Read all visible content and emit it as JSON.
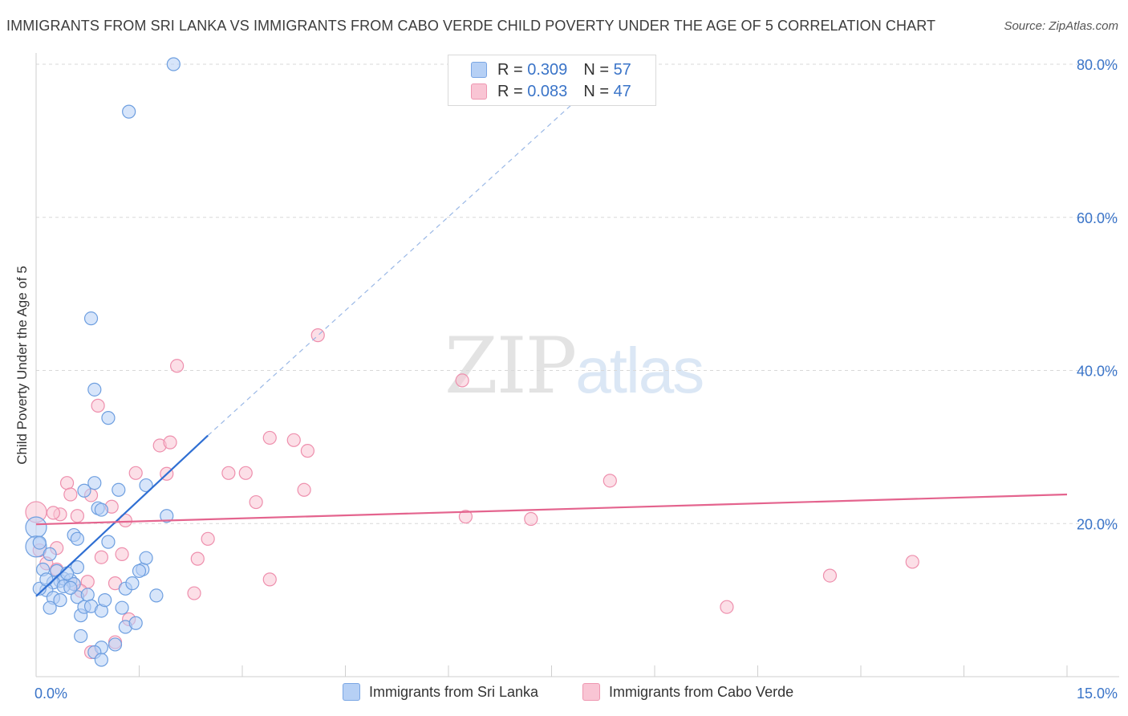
{
  "title": "IMMIGRANTS FROM SRI LANKA VS IMMIGRANTS FROM CABO VERDE CHILD POVERTY UNDER THE AGE OF 5 CORRELATION CHART",
  "source": "Source: ZipAtlas.com",
  "watermark": {
    "zip": "ZIP",
    "atlas": "atlas"
  },
  "stats_box": [
    {
      "r_label": "R =",
      "r_value": "0.309",
      "n_label": "N =",
      "n_value": "57",
      "color": "#b6d0f5"
    },
    {
      "r_label": "R =",
      "r_value": "0.083",
      "n_label": "N =",
      "n_value": "47",
      "color": "#f9c5d4"
    }
  ],
  "chart_data": {
    "type": "scatter",
    "title": "IMMIGRANTS FROM SRI LANKA VS IMMIGRANTS FROM CABO VERDE CHILD POVERTY UNDER THE AGE OF 5 CORRELATION CHART",
    "xlabel": "",
    "ylabel": "Child Poverty Under the Age of 5",
    "xlim": [
      0,
      15
    ],
    "ylim": [
      0,
      80
    ],
    "x_tick_labels": [
      "0.0%",
      "15.0%"
    ],
    "y_ticks": [
      20,
      40,
      60,
      80
    ],
    "y_tick_labels": [
      "20.0%",
      "40.0%",
      "60.0%",
      "80.0%"
    ],
    "grid": true,
    "legend_position": "bottom",
    "series": [
      {
        "name": "Immigrants from Sri Lanka",
        "color": "#6e9fe0",
        "fill": "#b6d0f5",
        "trend": {
          "x0": 0.0,
          "y0": 10.5,
          "x1": 2.5,
          "y1": 31.5,
          "dashed_to_x": 8.5,
          "dashed_to_y": 80.5,
          "color": "#2f6fd3"
        },
        "points": [
          [
            2.0,
            80.0
          ],
          [
            1.35,
            73.8
          ],
          [
            0.8,
            46.8
          ],
          [
            0.85,
            37.5
          ],
          [
            1.05,
            33.8
          ],
          [
            0.0,
            19.5
          ],
          [
            0.0,
            17.0
          ],
          [
            0.05,
            17.5
          ],
          [
            0.2,
            16.0
          ],
          [
            0.1,
            14.0
          ],
          [
            0.55,
            18.5
          ],
          [
            0.6,
            18.0
          ],
          [
            0.9,
            22.0
          ],
          [
            0.95,
            21.8
          ],
          [
            0.85,
            25.3
          ],
          [
            0.7,
            24.3
          ],
          [
            1.2,
            24.4
          ],
          [
            1.6,
            25.0
          ],
          [
            1.9,
            21.0
          ],
          [
            1.05,
            17.6
          ],
          [
            0.3,
            13.8
          ],
          [
            0.35,
            12.5
          ],
          [
            0.4,
            12.8
          ],
          [
            0.5,
            12.6
          ],
          [
            0.55,
            12.1
          ],
          [
            0.6,
            14.3
          ],
          [
            0.45,
            13.5
          ],
          [
            0.25,
            12.3
          ],
          [
            0.15,
            11.3
          ],
          [
            0.05,
            11.5
          ],
          [
            0.25,
            10.3
          ],
          [
            0.35,
            10.0
          ],
          [
            0.6,
            10.4
          ],
          [
            0.75,
            10.7
          ],
          [
            0.2,
            9.0
          ],
          [
            0.65,
            8.0
          ],
          [
            0.7,
            9.1
          ],
          [
            0.8,
            9.2
          ],
          [
            0.95,
            8.6
          ],
          [
            1.0,
            10.0
          ],
          [
            1.25,
            9.0
          ],
          [
            1.3,
            11.5
          ],
          [
            1.4,
            12.2
          ],
          [
            1.55,
            14.0
          ],
          [
            1.6,
            15.5
          ],
          [
            1.75,
            10.6
          ],
          [
            1.5,
            13.8
          ],
          [
            0.65,
            5.3
          ],
          [
            0.95,
            3.8
          ],
          [
            1.15,
            4.2
          ],
          [
            0.85,
            3.2
          ],
          [
            0.95,
            2.2
          ],
          [
            1.3,
            6.5
          ],
          [
            1.45,
            7.0
          ],
          [
            0.4,
            11.8
          ],
          [
            0.15,
            12.7
          ],
          [
            0.5,
            11.6
          ]
        ]
      },
      {
        "name": "Immigrants from Cabo Verde",
        "color": "#ee8fad",
        "fill": "#f9c5d4",
        "trend": {
          "x0": 0.0,
          "y0": 19.9,
          "x1": 15.0,
          "y1": 23.8,
          "color": "#e4648e"
        },
        "points": [
          [
            0.0,
            21.5
          ],
          [
            0.05,
            16.5
          ],
          [
            0.15,
            14.8
          ],
          [
            0.3,
            14.0
          ],
          [
            0.35,
            21.2
          ],
          [
            0.25,
            21.4
          ],
          [
            0.45,
            25.3
          ],
          [
            0.5,
            23.8
          ],
          [
            0.8,
            23.7
          ],
          [
            1.1,
            22.2
          ],
          [
            1.3,
            20.4
          ],
          [
            0.3,
            16.8
          ],
          [
            0.55,
            12.1
          ],
          [
            0.75,
            12.4
          ],
          [
            0.65,
            11.2
          ],
          [
            1.15,
            12.2
          ],
          [
            0.95,
            15.6
          ],
          [
            1.25,
            16.0
          ],
          [
            0.6,
            21.0
          ],
          [
            1.45,
            26.6
          ],
          [
            1.9,
            26.5
          ],
          [
            1.8,
            30.2
          ],
          [
            1.95,
            30.6
          ],
          [
            2.05,
            40.6
          ],
          [
            0.9,
            35.4
          ],
          [
            2.3,
            10.9
          ],
          [
            2.35,
            15.4
          ],
          [
            2.5,
            18.0
          ],
          [
            2.8,
            26.6
          ],
          [
            3.05,
            26.6
          ],
          [
            3.2,
            22.8
          ],
          [
            3.4,
            31.2
          ],
          [
            3.75,
            30.9
          ],
          [
            3.95,
            29.5
          ],
          [
            3.9,
            24.4
          ],
          [
            4.1,
            44.6
          ],
          [
            3.4,
            12.7
          ],
          [
            6.2,
            38.7
          ],
          [
            6.25,
            20.9
          ],
          [
            7.2,
            20.6
          ],
          [
            8.35,
            25.6
          ],
          [
            10.05,
            9.1
          ],
          [
            11.55,
            13.2
          ],
          [
            12.75,
            15.0
          ],
          [
            1.35,
            7.5
          ],
          [
            0.8,
            3.2
          ],
          [
            1.15,
            4.5
          ]
        ]
      }
    ]
  }
}
